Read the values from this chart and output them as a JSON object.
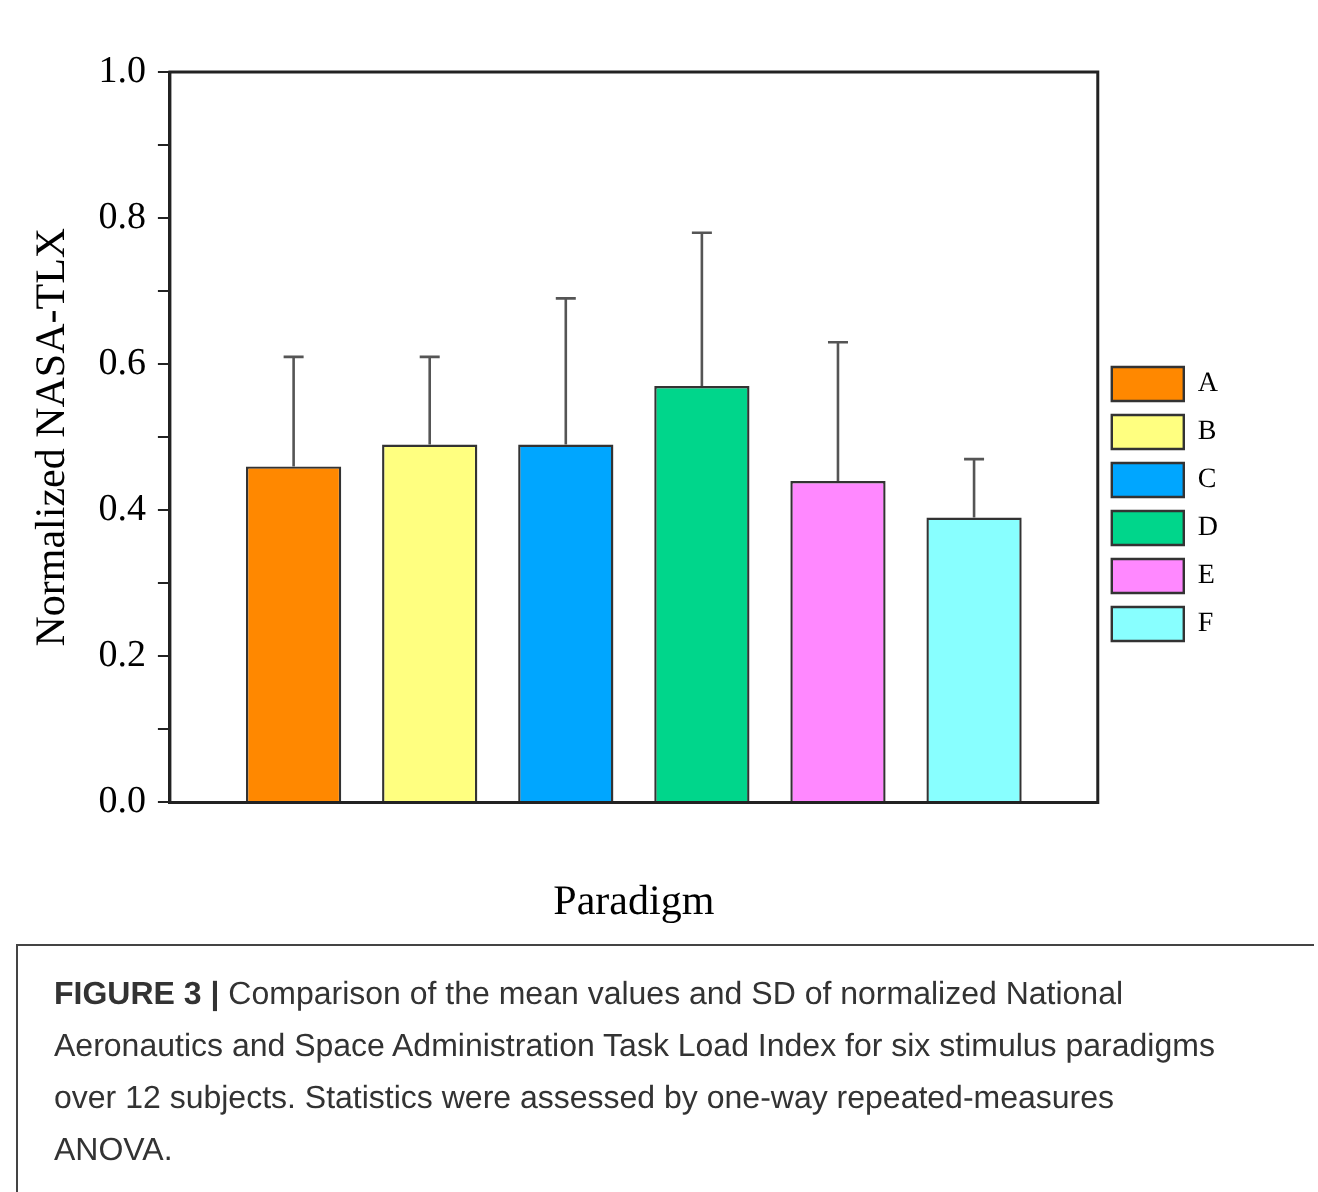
{
  "chart_data": {
    "type": "bar",
    "xlabel": "Paradigm",
    "ylabel": "Normalized NASA-TLX",
    "categories": [
      null
    ],
    "series": [
      {
        "name": "A",
        "color": "#ff8800",
        "values": [
          0.46
        ],
        "errors": [
          [
            0.46,
            0.61
          ]
        ]
      },
      {
        "name": "B",
        "color": "#ffff80",
        "values": [
          0.49
        ],
        "errors": [
          [
            0.49,
            0.61
          ]
        ]
      },
      {
        "name": "C",
        "color": "#00a6ff",
        "values": [
          0.49
        ],
        "errors": [
          [
            0.49,
            0.69
          ]
        ]
      },
      {
        "name": "D",
        "color": "#00d68b",
        "values": [
          0.57
        ],
        "errors": [
          [
            0.57,
            0.78
          ]
        ]
      },
      {
        "name": "E",
        "color": "#ff88ff",
        "values": [
          0.44
        ],
        "errors": [
          [
            0.44,
            0.63
          ]
        ]
      },
      {
        "name": "F",
        "color": "#88ffff",
        "values": [
          0.39
        ],
        "errors": [
          [
            0.39,
            0.47
          ]
        ]
      }
    ],
    "ylim": [
      0,
      1
    ],
    "yticks": [
      {
        "value": 0,
        "label": "0.0"
      },
      {
        "value": 0.1,
        "label": null
      },
      {
        "value": 0.2,
        "label": "0.2"
      },
      {
        "value": 0.3,
        "label": null
      },
      {
        "value": 0.4,
        "label": "0.4"
      },
      {
        "value": 0.5,
        "label": null
      },
      {
        "value": 0.6,
        "label": "0.6"
      },
      {
        "value": 0.7,
        "label": null
      },
      {
        "value": 0.8,
        "label": "0.8"
      },
      {
        "value": 0.9,
        "label": null
      },
      {
        "value": 1,
        "label": "1.0"
      }
    ],
    "legend": "right",
    "grid": false,
    "annotations": [
      "FIGURE 3 | Comparison of the mean values and SD of normalized National Aeronautics and Space Administration Task Load Index for six stimulus paradigms over 12 subjects. Statistics were assessed by one-way repeated-measures ANOVA."
    ]
  }
}
